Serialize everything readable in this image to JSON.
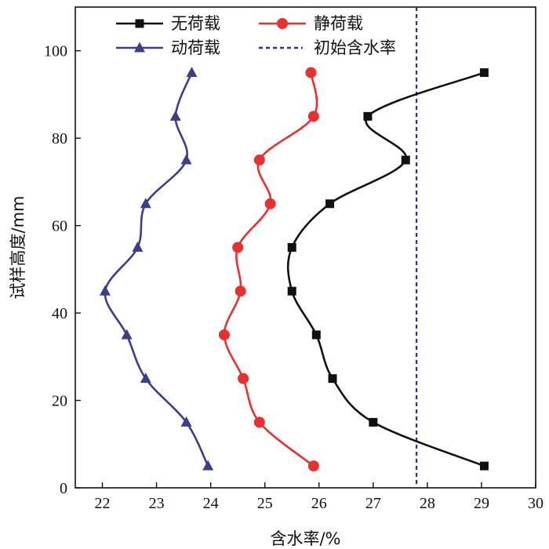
{
  "chart_data": {
    "type": "line",
    "xlabel": "含水率/%",
    "ylabel": "试样高度/mm",
    "xlim": [
      21.5,
      30
    ],
    "ylim": [
      0,
      110
    ],
    "x_ticks": [
      22,
      23,
      24,
      25,
      26,
      27,
      28,
      29,
      30
    ],
    "y_ticks": [
      0,
      20,
      40,
      60,
      80,
      100
    ],
    "x_tick_labels": [
      "22",
      "23",
      "24",
      "25",
      "26",
      "27",
      "28",
      "29",
      "30"
    ],
    "y_tick_labels": [
      "0",
      "20",
      "40",
      "60",
      "80",
      "100"
    ],
    "grid": false,
    "legend_position": "top-left",
    "series": [
      {
        "name": "无荷载",
        "color": "#111111",
        "marker": "square",
        "points": [
          {
            "x": 29.05,
            "y": 5
          },
          {
            "x": 27.0,
            "y": 15
          },
          {
            "x": 26.25,
            "y": 25
          },
          {
            "x": 25.95,
            "y": 35
          },
          {
            "x": 25.5,
            "y": 45
          },
          {
            "x": 25.5,
            "y": 55
          },
          {
            "x": 26.2,
            "y": 65
          },
          {
            "x": 27.6,
            "y": 75
          },
          {
            "x": 26.9,
            "y": 85
          },
          {
            "x": 29.05,
            "y": 95
          }
        ]
      },
      {
        "name": "静荷载",
        "color": "#e8302e",
        "marker": "circle",
        "points": [
          {
            "x": 25.9,
            "y": 5
          },
          {
            "x": 24.9,
            "y": 15
          },
          {
            "x": 24.6,
            "y": 25
          },
          {
            "x": 24.25,
            "y": 35
          },
          {
            "x": 24.55,
            "y": 45
          },
          {
            "x": 24.5,
            "y": 55
          },
          {
            "x": 25.1,
            "y": 65
          },
          {
            "x": 24.9,
            "y": 75
          },
          {
            "x": 25.9,
            "y": 85
          },
          {
            "x": 25.85,
            "y": 95
          }
        ]
      },
      {
        "name": "动荷载",
        "color": "#3a3e8c",
        "marker": "triangle",
        "points": [
          {
            "x": 23.95,
            "y": 5
          },
          {
            "x": 23.55,
            "y": 15
          },
          {
            "x": 22.8,
            "y": 25
          },
          {
            "x": 22.45,
            "y": 35
          },
          {
            "x": 22.05,
            "y": 45
          },
          {
            "x": 22.65,
            "y": 55
          },
          {
            "x": 22.8,
            "y": 65
          },
          {
            "x": 23.55,
            "y": 75
          },
          {
            "x": 23.35,
            "y": 85
          },
          {
            "x": 23.65,
            "y": 95
          }
        ]
      }
    ],
    "reference_line": {
      "name": "初始含水率",
      "x": 27.8,
      "color": "#2b2b9a",
      "style": "dashed"
    }
  }
}
